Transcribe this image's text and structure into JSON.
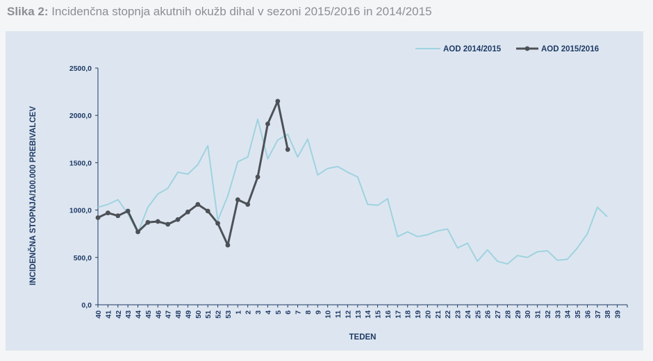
{
  "caption": {
    "lead": "Slika 2:",
    "text": "Incidenčna stopnja akutnih okužb dihal v sezoni 2015/2016 in 2014/2015"
  },
  "colors": {
    "series_2014": "#9fd2e0",
    "series_2015": "#4d5157",
    "axis": "#1f3a66",
    "panel": "#dde6f0"
  },
  "chart_data": {
    "type": "line",
    "title": "",
    "xlabel": "TEDEN",
    "ylabel": "INCIDENČNA STOPNJA/100.000 PREBIVALCEV",
    "ylim": [
      0,
      2500
    ],
    "yticks": [
      "0,0",
      "500,0",
      "1000,0",
      "1500,0",
      "2000,0",
      "2500,0"
    ],
    "grid": false,
    "legend_position": "top-right",
    "categories": [
      "40",
      "41",
      "42",
      "43",
      "44",
      "45",
      "46",
      "47",
      "48",
      "49",
      "50",
      "51",
      "52",
      "53",
      "1",
      "2",
      "3",
      "4",
      "5",
      "6",
      "7",
      "8",
      "9",
      "10",
      "11",
      "12",
      "13",
      "14",
      "15",
      "16",
      "17",
      "18",
      "19",
      "20",
      "21",
      "22",
      "23",
      "24",
      "25",
      "26",
      "27",
      "28",
      "29",
      "30",
      "31",
      "32",
      "33",
      "34",
      "35",
      "36",
      "37",
      "38",
      "39"
    ],
    "series": [
      {
        "name": "AOD 2014/2015",
        "markers": false,
        "values": [
          1030,
          1060,
          1110,
          960,
          760,
          1030,
          1170,
          1230,
          1400,
          1380,
          1480,
          1680,
          890,
          1150,
          1510,
          1560,
          1960,
          1540,
          1740,
          1800,
          1560,
          1750,
          1370,
          1440,
          1460,
          1400,
          1350,
          1060,
          1050,
          1120,
          720,
          770,
          720,
          740,
          780,
          800,
          600,
          650,
          460,
          580,
          460,
          430,
          520,
          500,
          560,
          570,
          470,
          480,
          600,
          750,
          1030,
          930,
          null
        ]
      },
      {
        "name": "AOD 2015/2016",
        "markers": true,
        "values": [
          920,
          970,
          940,
          990,
          770,
          870,
          880,
          850,
          900,
          980,
          1060,
          990,
          860,
          630,
          1110,
          1060,
          1350,
          1910,
          2150,
          1640,
          null,
          null,
          null,
          null,
          null,
          null,
          null,
          null,
          null,
          null,
          null,
          null,
          null,
          null,
          null,
          null,
          null,
          null,
          null,
          null,
          null,
          null,
          null,
          null,
          null,
          null,
          null,
          null,
          null,
          null,
          null,
          null,
          null
        ]
      }
    ]
  }
}
